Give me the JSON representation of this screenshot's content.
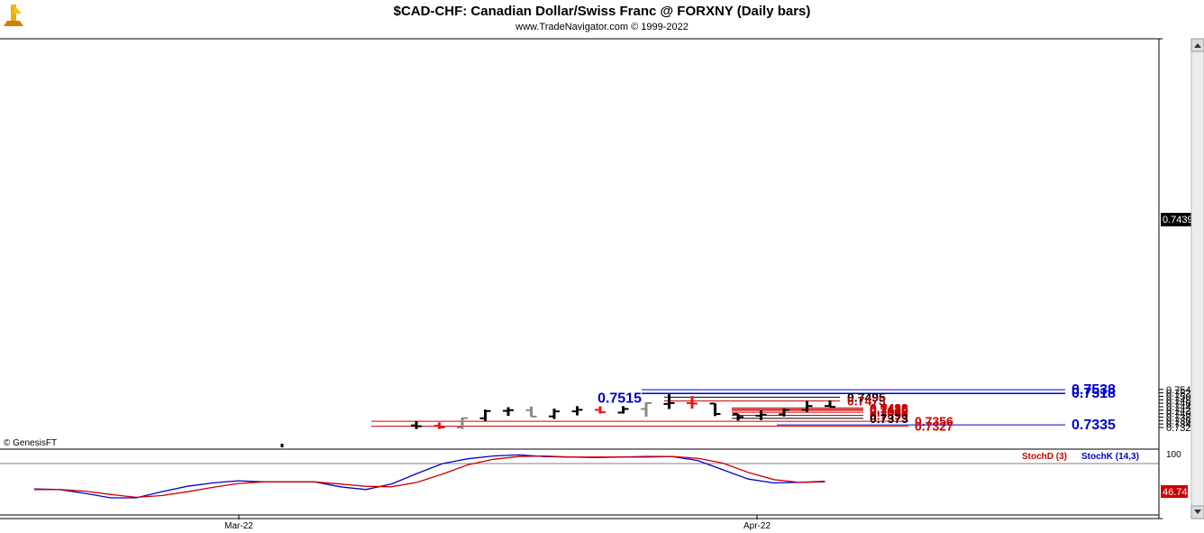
{
  "header": {
    "title": "$CAD-CHF:  Canadian Dollar/Swiss Franc @ FORXNY  (Daily bars)",
    "subtitle": "www.TradeNavigator.com © 1999-2022",
    "copyright": "© GenesisFT"
  },
  "colors": {
    "up_bar": "#000000",
    "down_bar": "#ee1111",
    "neutral_bar": "#888888",
    "support_line": "#cc0000",
    "target_line": "#0000cc",
    "stoch_d": "#cc0000",
    "stoch_k": "#0000cc"
  },
  "chart_data": {
    "type": "ohlc",
    "price_axis": {
      "range": [
        0.7311,
        0.7547
      ],
      "ticks": [
        "0.7320",
        "0.7340",
        "0.7360",
        "0.7380",
        "0.7400",
        "0.7420",
        "0.7440",
        "0.7460",
        "0.7480",
        "0.7500",
        "0.7520",
        "0.7540"
      ],
      "current_price": "0.7439"
    },
    "x_axis": {
      "labels": [
        {
          "label": "Mar-22",
          "bar_index": 9
        },
        {
          "label": "Apr-22",
          "bar_index": 32
        }
      ]
    },
    "bars": [
      {
        "open": 0.7332,
        "high": 0.7356,
        "low": 0.7311,
        "close": 0.7327,
        "color": "up_bar"
      },
      {
        "open": 0.733,
        "high": 0.7349,
        "low": 0.7311,
        "close": 0.732,
        "color": "down_bar"
      },
      {
        "open": 0.732,
        "high": 0.7377,
        "low": 0.7311,
        "close": 0.7374,
        "color": "neutral_bar"
      },
      {
        "open": 0.7373,
        "high": 0.7423,
        "low": 0.7358,
        "close": 0.7415,
        "color": "up_bar"
      },
      {
        "open": 0.7416,
        "high": 0.7437,
        "low": 0.7387,
        "close": 0.742,
        "color": "up_bar"
      },
      {
        "open": 0.742,
        "high": 0.7441,
        "low": 0.7382,
        "close": 0.7383,
        "color": "neutral_bar"
      },
      {
        "open": 0.7384,
        "high": 0.7429,
        "low": 0.7369,
        "close": 0.7413,
        "color": "up_bar"
      },
      {
        "open": 0.7413,
        "high": 0.7443,
        "low": 0.739,
        "close": 0.7422,
        "color": "up_bar"
      },
      {
        "open": 0.7422,
        "high": 0.7442,
        "low": 0.74,
        "close": 0.7408,
        "color": "down_bar"
      },
      {
        "open": 0.7406,
        "high": 0.7443,
        "low": 0.74,
        "close": 0.7427,
        "color": "up_bar"
      },
      {
        "open": 0.7427,
        "high": 0.7466,
        "low": 0.7382,
        "close": 0.7461,
        "color": "neutral_bar"
      },
      {
        "open": 0.7456,
        "high": 0.7512,
        "low": 0.7427,
        "close": 0.7461,
        "color": "up_bar"
      },
      {
        "open": 0.7461,
        "high": 0.7501,
        "low": 0.7429,
        "close": 0.7458,
        "color": "down_bar"
      },
      {
        "open": 0.7458,
        "high": 0.7459,
        "low": 0.7386,
        "close": 0.7398,
        "color": "up_bar"
      },
      {
        "open": 0.7398,
        "high": 0.7398,
        "low": 0.736,
        "close": 0.7381,
        "color": "up_bar"
      },
      {
        "open": 0.7388,
        "high": 0.7419,
        "low": 0.7363,
        "close": 0.7394,
        "color": "up_bar"
      },
      {
        "open": 0.7396,
        "high": 0.7429,
        "low": 0.7383,
        "close": 0.7421,
        "color": "up_bar"
      },
      {
        "open": 0.7421,
        "high": 0.7474,
        "low": 0.7411,
        "close": 0.7444,
        "color": "up_bar"
      },
      {
        "open": 0.7444,
        "high": 0.7477,
        "low": 0.7438,
        "close": 0.7439,
        "color": "up_bar"
      }
    ],
    "extra_tick": {
      "price": 0.7314,
      "bar_offset": -6
    },
    "levels": [
      {
        "label": "0.7538",
        "price": 0.7538,
        "color": "target_line",
        "start_bar": 10,
        "label_side": "right"
      },
      {
        "label": "0.7518",
        "price": 0.7518,
        "color": "target_line",
        "start_bar": 10,
        "label_side": "right"
      },
      {
        "label": "0.7515",
        "price": 0.7515,
        "color": "target_line",
        "start_bar": 10,
        "label_side": "left"
      },
      {
        "label": "0.7495",
        "price": 0.7495,
        "color": "up_bar",
        "start_bar": 11,
        "label_side": "mid"
      },
      {
        "label": "0.7473",
        "price": 0.7473,
        "color": "support_line",
        "start_bar": 11,
        "label_side": "mid"
      },
      {
        "label": "0.7433",
        "price": 0.7433,
        "color": "support_line",
        "start_bar": 15,
        "label_side": "mid2"
      },
      {
        "label": "0.7425",
        "price": 0.7425,
        "color": "support_line",
        "start_bar": 15,
        "label_side": "mid2"
      },
      {
        "label": "0.7419",
        "price": 0.7419,
        "color": "support_line",
        "start_bar": 15,
        "label_side": "mid2"
      },
      {
        "label": "0.7408",
        "price": 0.7408,
        "color": "support_line",
        "start_bar": 15,
        "label_side": "mid2"
      },
      {
        "label": "0.7390",
        "price": 0.739,
        "color": "support_line",
        "start_bar": 15,
        "label_side": "mid2"
      },
      {
        "label": "0.7373",
        "price": 0.7373,
        "color": "up_bar",
        "start_bar": 15,
        "label_side": "mid2"
      },
      {
        "label": "0.7356",
        "price": 0.7356,
        "color": "support_line",
        "start_bar": -2,
        "label_side": "mid3"
      },
      {
        "label": "0.7335",
        "price": 0.7335,
        "color": "target_line",
        "start_bar": 16,
        "label_side": "right"
      },
      {
        "label": "0.7327",
        "price": 0.7327,
        "color": "support_line",
        "start_bar": -2,
        "label_side": "mid3"
      }
    ],
    "stochastic": {
      "axis_label": "100",
      "legend": [
        {
          "name": "StochD (3)",
          "color": "stoch_d"
        },
        {
          "name": "StochK (14,3)",
          "color": "stoch_k"
        }
      ],
      "current_value": "46.74",
      "series": [
        {
          "name": "StochK",
          "color": "stoch_k",
          "values": [
            39,
            38,
            31,
            23,
            23,
            34,
            44,
            50,
            54,
            52,
            52,
            52,
            43,
            38,
            48,
            67,
            85,
            94,
            99,
            101,
            98,
            97,
            96,
            97,
            98,
            98,
            91,
            74,
            57,
            50,
            51,
            53
          ]
        },
        {
          "name": "StochD",
          "color": "stoch_d",
          "values": [
            38,
            38,
            35,
            29,
            24,
            27,
            34,
            42,
            49,
            52,
            52,
            52,
            48,
            44,
            43,
            51,
            66,
            83,
            93,
            98,
            99,
            97,
            97,
            97,
            97,
            98,
            95,
            86,
            69,
            56,
            51,
            52
          ]
        }
      ]
    }
  }
}
